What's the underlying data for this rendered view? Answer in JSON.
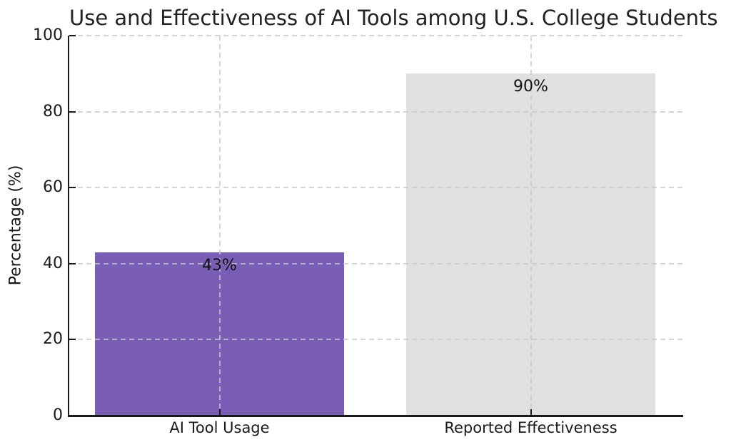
{
  "chart_data": {
    "type": "bar",
    "title": "Use and Effectiveness of AI Tools among U.S. College Students",
    "categories": [
      "AI Tool Usage",
      "Reported Effectiveness"
    ],
    "values": [
      43,
      90
    ],
    "bar_labels": [
      "43%",
      "90%"
    ],
    "bar_colors": [
      "#7A5EB5",
      "#E0E0E0"
    ],
    "xlabel": "",
    "ylabel": "Percentage (%)",
    "ylim": [
      0,
      100
    ],
    "yticks": [
      0,
      20,
      40,
      60,
      80,
      100
    ],
    "grid": "dashed, light gray, horizontal at y-ticks and vertical at bar centers, drawn over bars",
    "legend": "none",
    "axis_color": "#1a1a1a",
    "background_color": "#ffffff"
  }
}
